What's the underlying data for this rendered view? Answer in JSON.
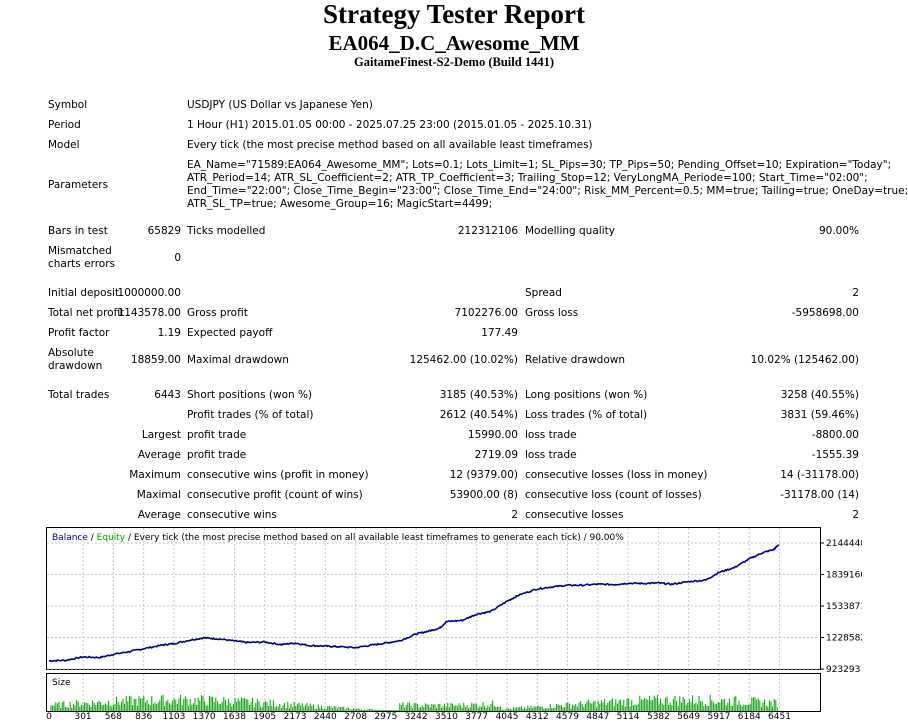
{
  "header": {
    "title": "Strategy Tester Report",
    "ea_name": "EA064_D.C_Awesome_MM",
    "server": "GaitameFinest-S2-Demo (Build 1441)"
  },
  "info": {
    "symbol_label": "Symbol",
    "symbol_value": "USDJPY (US Dollar vs Japanese Yen)",
    "period_label": "Period",
    "period_value": "1 Hour (H1) 2015.01.05 00:00 - 2025.07.25 23:00 (2015.01.05 - 2025.10.31)",
    "model_label": "Model",
    "model_value": "Every tick (the most precise method based on all available least timeframes)",
    "parameters_label": "Parameters",
    "parameters_lines": [
      "EA_Name=\"71589:EA064_Awesome_MM\"; Lots=0.1; Lots_Limit=1; SL_Pips=30; TP_Pips=50; Pending_Offset=10; Expiration=\"Today\";",
      "ATR_Period=14; ATR_SL_Coefficient=2; ATR_TP_Coefficient=3; Trailing_Stop=12; VeryLongMA_Periode=100; Start_Time=\"02:00\";",
      "End_Time=\"22:00\"; Close_Time_Begin=\"23:00\"; Close_Time_End=\"24:00\"; Risk_MM_Percent=0.5; MM=true; Tailing=true; OneDay=true;",
      "ATR_SL_TP=true; Awesome_Group=16; MagicStart=4499;"
    ]
  },
  "stats": {
    "bars_label": "Bars in test",
    "bars_value": "65829",
    "ticks_label": "Ticks modelled",
    "ticks_value": "212312106",
    "quality_label": "Modelling quality",
    "quality_value": "90.00%",
    "mismatch_label": "Mismatched charts errors",
    "mismatch_value": "0",
    "deposit_label": "Initial deposit",
    "deposit_value": "1000000.00",
    "spread_label": "Spread",
    "spread_value": "2",
    "netprofit_label": "Total net profit",
    "netprofit_value": "1143578.00",
    "grossprofit_label": "Gross profit",
    "grossprofit_value": "7102276.00",
    "grossloss_label": "Gross loss",
    "grossloss_value": "-5958698.00",
    "pf_label": "Profit factor",
    "pf_value": "1.19",
    "payoff_label": "Expected payoff",
    "payoff_value": "177.49",
    "absdd_label": "Absolute drawdown",
    "absdd_value": "18859.00",
    "maxdd_label": "Maximal drawdown",
    "maxdd_value": "125462.00 (10.02%)",
    "reldd_label": "Relative drawdown",
    "reldd_value": "10.02% (125462.00)",
    "trades_label": "Total trades",
    "trades_value": "6443",
    "short_label": "Short positions (won %)",
    "short_value": "3185 (40.53%)",
    "long_label": "Long positions (won %)",
    "long_value": "3258 (40.55%)",
    "profittrades_label": "Profit trades (% of total)",
    "profittrades_value": "2612 (40.54%)",
    "losstrades_label": "Loss trades (% of total)",
    "losstrades_value": "3831 (59.46%)",
    "largest_label": "Largest",
    "largest_profit_label": "profit trade",
    "largest_profit_value": "15990.00",
    "largest_loss_label": "loss trade",
    "largest_loss_value": "-8800.00",
    "average_label": "Average",
    "average_profit_label": "profit trade",
    "average_profit_value": "2719.09",
    "average_loss_label": "loss trade",
    "average_loss_value": "-1555.39",
    "maximum_label": "Maximum",
    "max_wins_label": "consecutive wins (profit in money)",
    "max_wins_value": "12 (9379.00)",
    "max_losses_label": "consecutive losses (loss in money)",
    "max_losses_value": "14 (-31178.00)",
    "maximal_label": "Maximal",
    "maximal_profit_label": "consecutive profit (count of wins)",
    "maximal_profit_value": "53900.00 (8)",
    "maximal_loss_label": "consecutive loss (count of losses)",
    "maximal_loss_value": "-31178.00 (14)",
    "avg2_label": "Average",
    "avg_wins_label": "consecutive wins",
    "avg_wins_value": "2",
    "avg_losses_label": "consecutive losses",
    "avg_losses_value": "2"
  },
  "chart_data": {
    "type": "line",
    "legend_balance": "Balance",
    "legend_sep1": " / ",
    "legend_equity": "Equity",
    "legend_rest": " / Every tick (the most precise method based on all available least timeframes to generate each tick) / 90.00%",
    "size_label": "Size",
    "balance_color": "#00008b",
    "equity_color": "#00a000",
    "volume_color": "#00a000",
    "ylim": [
      923293,
      2144448
    ],
    "y_ticks": [
      "2144448",
      "1839160",
      "1533871",
      "1228582",
      "923293"
    ],
    "y_tick_values": [
      2144448,
      1839160,
      1533871,
      1228582,
      923293
    ],
    "x_ticks": [
      "0",
      "301",
      "568",
      "836",
      "1103",
      "1370",
      "1638",
      "1905",
      "2173",
      "2440",
      "2708",
      "2975",
      "3242",
      "3510",
      "3777",
      "4045",
      "4312",
      "4579",
      "4847",
      "5114",
      "5382",
      "5649",
      "5917",
      "6184",
      "6451"
    ],
    "x_max": 6443,
    "balance_x": [
      0,
      150,
      301,
      450,
      568,
      700,
      836,
      1000,
      1103,
      1250,
      1370,
      1500,
      1638,
      1750,
      1905,
      2050,
      2173,
      2300,
      2440,
      2550,
      2708,
      2850,
      2975,
      3100,
      3242,
      3350,
      3450,
      3510,
      3650,
      3777,
      3900,
      4045,
      4150,
      4312,
      4450,
      4579,
      4700,
      4847,
      5000,
      5114,
      5250,
      5382,
      5500,
      5649,
      5800,
      5917,
      6050,
      6184,
      6300,
      6400,
      6443
    ],
    "balance_y": [
      1002000,
      1008000,
      1040000,
      1035000,
      1065000,
      1090000,
      1120000,
      1155000,
      1170000,
      1205000,
      1225000,
      1215000,
      1195000,
      1180000,
      1185000,
      1160000,
      1175000,
      1150000,
      1145000,
      1140000,
      1130000,
      1155000,
      1175000,
      1198000,
      1262000,
      1290000,
      1320000,
      1382000,
      1395000,
      1455000,
      1480000,
      1580000,
      1640000,
      1700000,
      1720000,
      1735000,
      1735000,
      1745000,
      1742000,
      1755000,
      1752000,
      1757000,
      1745000,
      1770000,
      1785000,
      1860000,
      1905000,
      1990000,
      2050000,
      2080000,
      2130000
    ]
  }
}
